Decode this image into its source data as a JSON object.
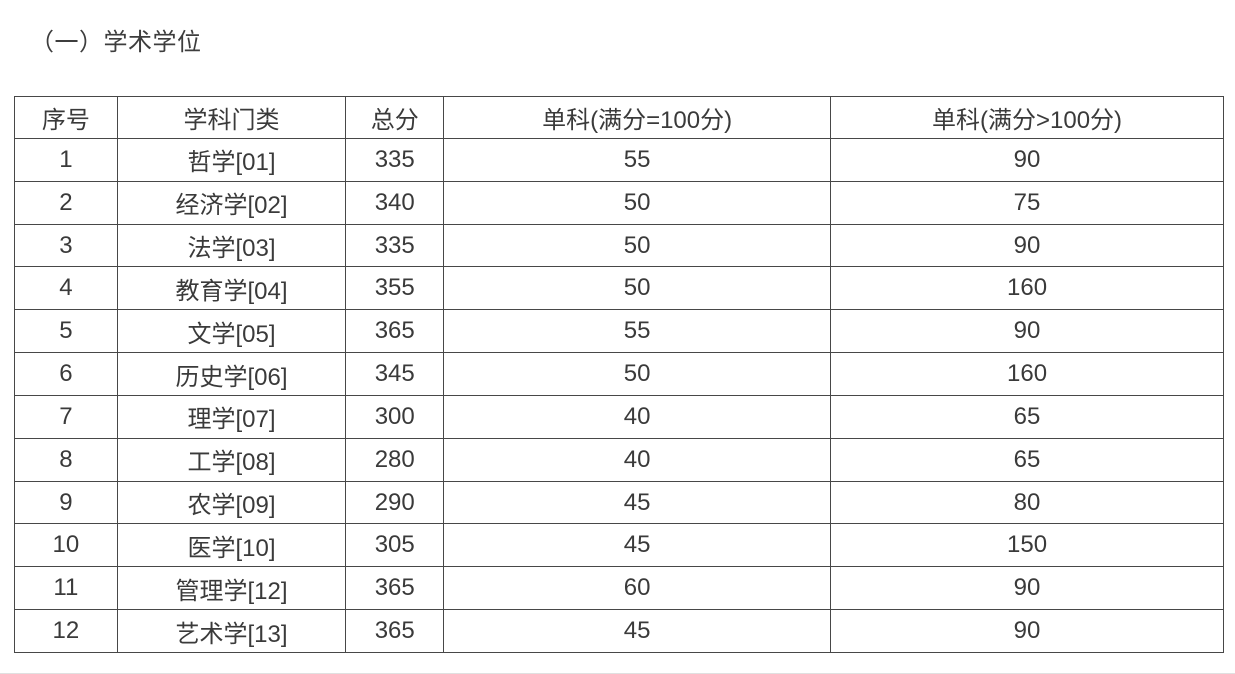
{
  "title": "（一）学术学位",
  "table": {
    "headers": [
      "序号",
      "学科门类",
      "总分",
      "单科(满分=100分)",
      "单科(满分>100分)"
    ],
    "rows": [
      [
        "1",
        "哲学[01]",
        "335",
        "55",
        "90"
      ],
      [
        "2",
        "经济学[02]",
        "340",
        "50",
        "75"
      ],
      [
        "3",
        "法学[03]",
        "335",
        "50",
        "90"
      ],
      [
        "4",
        "教育学[04]",
        "355",
        "50",
        "160"
      ],
      [
        "5",
        "文学[05]",
        "365",
        "55",
        "90"
      ],
      [
        "6",
        "历史学[06]",
        "345",
        "50",
        "160"
      ],
      [
        "7",
        "理学[07]",
        "300",
        "40",
        "65"
      ],
      [
        "8",
        "工学[08]",
        "280",
        "40",
        "65"
      ],
      [
        "9",
        "农学[09]",
        "290",
        "45",
        "80"
      ],
      [
        "10",
        "医学[10]",
        "305",
        "45",
        "150"
      ],
      [
        "11",
        "管理学[12]",
        "365",
        "60",
        "90"
      ],
      [
        "12",
        "艺术学[13]",
        "365",
        "45",
        "90"
      ]
    ]
  },
  "colors": {
    "text": "#3d3d3d",
    "table_border": "#474747",
    "background": "#ffffff",
    "bottom_divider": "#e0e0e0"
  }
}
